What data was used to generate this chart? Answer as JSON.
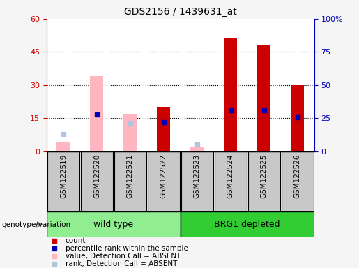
{
  "title": "GDS2156 / 1439631_at",
  "samples": [
    "GSM122519",
    "GSM122520",
    "GSM122521",
    "GSM122522",
    "GSM122523",
    "GSM122524",
    "GSM122525",
    "GSM122526"
  ],
  "count_values": [
    null,
    null,
    null,
    20,
    null,
    51,
    48,
    30
  ],
  "percentile_rank_left": [
    null,
    28,
    null,
    22,
    null,
    31,
    31,
    26
  ],
  "absent_value": [
    4,
    34,
    17,
    null,
    2,
    null,
    null,
    null
  ],
  "absent_rank_left": [
    13,
    null,
    21,
    null,
    5,
    null,
    null,
    null
  ],
  "left_ylim": [
    0,
    60
  ],
  "right_ylim": [
    0,
    100
  ],
  "left_yticks": [
    0,
    15,
    30,
    45,
    60
  ],
  "right_yticks": [
    0,
    25,
    50,
    75,
    100
  ],
  "right_yticklabels": [
    "0",
    "25",
    "50",
    "75",
    "100%"
  ],
  "group1_label": "wild type",
  "group2_label": "BRG1 depleted",
  "group1_color": "#90EE90",
  "group2_color": "#32CD32",
  "count_color": "#CC0000",
  "rank_color": "#0000BB",
  "absent_value_color": "#FFB6C1",
  "absent_rank_color": "#B0C4DE",
  "bar_width": 0.4,
  "plot_bg_color": "#FFFFFF",
  "fig_bg_color": "#F5F5F5",
  "tick_box_color": "#C8C8C8",
  "ylabel_left_color": "#CC0000",
  "ylabel_right_color": "#0000BB",
  "legend_items": [
    {
      "label": "count",
      "color": "#CC0000"
    },
    {
      "label": "percentile rank within the sample",
      "color": "#0000BB"
    },
    {
      "label": "value, Detection Call = ABSENT",
      "color": "#FFB6C1"
    },
    {
      "label": "rank, Detection Call = ABSENT",
      "color": "#B0C4DE"
    }
  ]
}
